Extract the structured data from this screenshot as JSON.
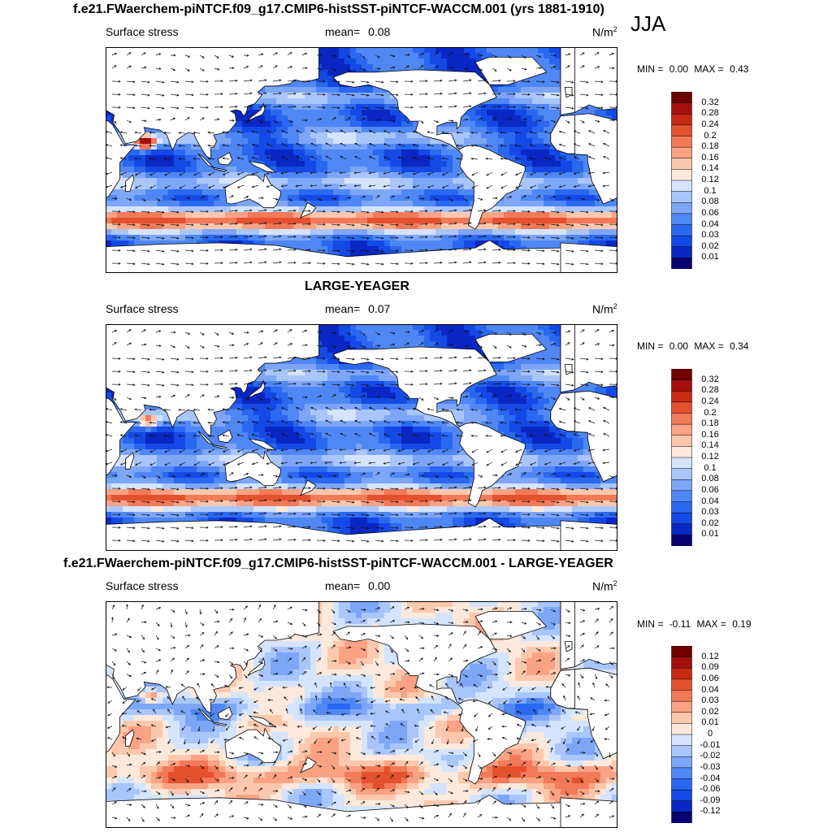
{
  "season": "JJA",
  "panels": [
    {
      "title": "f.e21.FWaerchem-piNTCF.f09_g17.CMIP6-histSST-piNTCF-WACCM.001 (yrs 1881-1910)",
      "variable": "Surface stress",
      "mean_label": "mean=",
      "mean_value": "0.08",
      "units_base": "N/m",
      "units_exp": "2",
      "min_label": "MIN =",
      "min_value": "0.00",
      "max_label": "MAX =",
      "max_value": "0.43",
      "colorbar_ticks": [
        "0.32",
        "0.28",
        "0.24",
        "0.2",
        "0.18",
        "0.16",
        "0.14",
        "0.12",
        "0.1",
        "0.08",
        "0.06",
        "0.04",
        "0.03",
        "0.02",
        "0.01"
      ]
    },
    {
      "title": "LARGE-YEAGER",
      "variable": "Surface stress",
      "mean_label": "mean=",
      "mean_value": "0.07",
      "units_base": "N/m",
      "units_exp": "2",
      "min_label": "MIN =",
      "min_value": "0.00",
      "max_label": "MAX =",
      "max_value": "0.34",
      "colorbar_ticks": [
        "0.32",
        "0.28",
        "0.24",
        "0.2",
        "0.18",
        "0.16",
        "0.14",
        "0.12",
        "0.1",
        "0.08",
        "0.06",
        "0.04",
        "0.03",
        "0.02",
        "0.01"
      ]
    },
    {
      "title": "f.e21.FWaerchem-piNTCF.f09_g17.CMIP6-histSST-piNTCF-WACCM.001 - LARGE-YEAGER",
      "variable": "Surface stress",
      "mean_label": "mean=",
      "mean_value": "0.00",
      "units_base": "N/m",
      "units_exp": "2",
      "min_label": "MIN =",
      "min_value": "-0.11",
      "max_label": "MAX =",
      "max_value": "0.19",
      "colorbar_ticks": [
        "0.12",
        "0.09",
        "0.06",
        "0.04",
        "0.03",
        "0.02",
        "0.01",
        "0",
        "-0.01",
        "-0.02",
        "-0.03",
        "-0.04",
        "-0.06",
        "-0.09",
        "-0.12"
      ]
    }
  ],
  "colors": {
    "abs_scale": [
      "#08006f",
      "#0a27c4",
      "#1449e6",
      "#2b68f0",
      "#4f87f5",
      "#7ea6f7",
      "#a9c6fb",
      "#d4e4fd",
      "#fde9dc",
      "#fcc8ad",
      "#f9a284",
      "#f27a58",
      "#e4512f",
      "#c72a14",
      "#a50f0f",
      "#6e0000"
    ],
    "diff_scale": [
      "#08006f",
      "#0a27c4",
      "#1449e6",
      "#2b68f0",
      "#4f87f5",
      "#7ea6f7",
      "#a9c6fb",
      "#d4e4fd",
      "#fde9dc",
      "#fcc8ad",
      "#f9a284",
      "#f27a58",
      "#e4512f",
      "#c72a14",
      "#a50f0f",
      "#6e0000"
    ],
    "land": "#ffffff",
    "coast": "#000000"
  }
}
